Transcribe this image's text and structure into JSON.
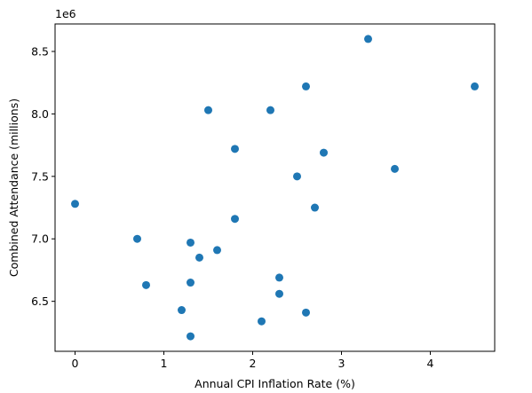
{
  "chart_data": {
    "type": "scatter",
    "xlabel": "Annual CPI Inflation Rate (%)",
    "ylabel": "Combined Attendance (millions)",
    "y_offset_label": "1e6",
    "xlim": [
      -0.225,
      4.725
    ],
    "ylim": [
      6100000,
      8720000
    ],
    "x_ticks": [
      0,
      1,
      2,
      3,
      4
    ],
    "x_tick_labels": [
      "0",
      "1",
      "2",
      "3",
      "4"
    ],
    "y_ticks": [
      6500000,
      7000000,
      7500000,
      8000000,
      8500000
    ],
    "y_tick_labels": [
      "6.5",
      "7.0",
      "7.5",
      "8.0",
      "8.5"
    ],
    "grid": false,
    "marker_color": "#1f77b4",
    "series": [
      {
        "points": [
          {
            "x": 0.0,
            "y": 7280000
          },
          {
            "x": 0.7,
            "y": 7000000
          },
          {
            "x": 0.8,
            "y": 6630000
          },
          {
            "x": 1.2,
            "y": 6430000
          },
          {
            "x": 1.3,
            "y": 6970000
          },
          {
            "x": 1.3,
            "y": 6650000
          },
          {
            "x": 1.3,
            "y": 6220000
          },
          {
            "x": 1.4,
            "y": 6850000
          },
          {
            "x": 1.5,
            "y": 8030000
          },
          {
            "x": 1.6,
            "y": 6910000
          },
          {
            "x": 1.8,
            "y": 7720000
          },
          {
            "x": 1.8,
            "y": 7160000
          },
          {
            "x": 2.1,
            "y": 6340000
          },
          {
            "x": 2.2,
            "y": 8030000
          },
          {
            "x": 2.3,
            "y": 6690000
          },
          {
            "x": 2.3,
            "y": 6560000
          },
          {
            "x": 2.5,
            "y": 7500000
          },
          {
            "x": 2.6,
            "y": 8220000
          },
          {
            "x": 2.6,
            "y": 6410000
          },
          {
            "x": 2.7,
            "y": 7250000
          },
          {
            "x": 2.8,
            "y": 7690000
          },
          {
            "x": 3.3,
            "y": 8600000
          },
          {
            "x": 3.6,
            "y": 7560000
          },
          {
            "x": 4.5,
            "y": 8220000
          }
        ]
      }
    ]
  }
}
